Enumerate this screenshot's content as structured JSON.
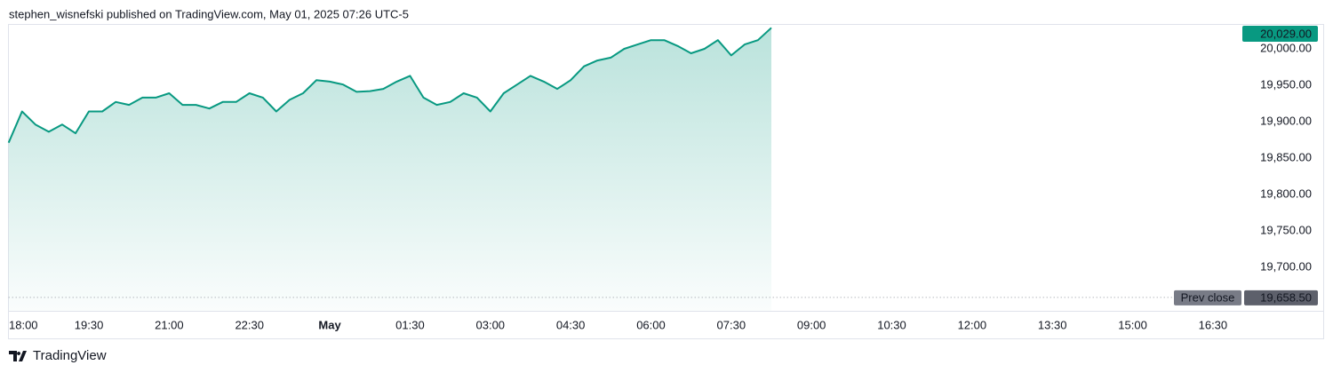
{
  "header": "stephen_wisnefski published on TradingView.com, May 01, 2025 07:26 UTC-5",
  "footer": "TradingView",
  "chart_data": {
    "type": "area",
    "color": "#089981",
    "x": [
      0,
      0.25,
      0.5,
      0.75,
      1,
      1.25,
      1.5,
      1.75,
      2,
      2.25,
      2.5,
      2.75,
      3,
      3.25,
      3.5,
      3.75,
      4,
      4.25,
      4.5,
      4.75,
      5,
      5.25,
      5.5,
      5.75,
      6,
      6.25,
      6.5,
      6.75,
      7,
      7.25,
      7.5,
      7.75,
      8,
      8.25,
      8.5,
      8.75,
      9,
      9.25,
      9.5,
      9.75,
      10,
      10.25,
      10.5,
      10.75,
      11,
      11.25,
      11.5,
      11.75,
      12,
      12.25,
      12.5,
      12.75,
      13,
      13.25,
      13.5,
      13.75,
      14,
      14.25
    ],
    "values": [
      19871,
      19914,
      19896,
      19886,
      19896,
      19884,
      19914,
      19914,
      19927,
      19923,
      19933,
      19933,
      19939,
      19923,
      19923,
      19918,
      19927,
      19927,
      19939,
      19933,
      19914,
      19930,
      19939,
      19957,
      19955,
      19951,
      19941,
      19942,
      19945,
      19955,
      19963,
      19933,
      19923,
      19927,
      19939,
      19933,
      19914,
      19939,
      19951,
      19963,
      19955,
      19945,
      19957,
      19976,
      19984,
      19988,
      20000,
      20006,
      20012,
      20012,
      20004,
      19994,
      20000,
      20012,
      19991,
      20006,
      20012,
      20029
    ],
    "last_value_label": "20,029.00",
    "prev_close": {
      "label": "Prev close",
      "value": 19658.5,
      "value_label": "19,658.50"
    },
    "xlim": [
      0,
      23
    ],
    "xticks": [
      {
        "value": 0,
        "label": "18:00"
      },
      {
        "value": 1.5,
        "label": "19:30"
      },
      {
        "value": 3,
        "label": "21:00"
      },
      {
        "value": 4.5,
        "label": "22:30"
      },
      {
        "value": 6,
        "label": "May"
      },
      {
        "value": 7.5,
        "label": "01:30"
      },
      {
        "value": 9,
        "label": "03:00"
      },
      {
        "value": 10.5,
        "label": "04:30"
      },
      {
        "value": 12,
        "label": "06:00"
      },
      {
        "value": 13.5,
        "label": "07:30"
      },
      {
        "value": 15,
        "label": "09:00"
      },
      {
        "value": 16.5,
        "label": "10:30"
      },
      {
        "value": 18,
        "label": "12:00"
      },
      {
        "value": 19.5,
        "label": "13:30"
      },
      {
        "value": 21,
        "label": "15:00"
      },
      {
        "value": 22.5,
        "label": "16:30"
      }
    ],
    "ylim": [
      19640,
      20033
    ],
    "yticks": [
      {
        "value": 19700,
        "label": "19,700.00"
      },
      {
        "value": 19750,
        "label": "19,750.00"
      },
      {
        "value": 19800,
        "label": "19,800.00"
      },
      {
        "value": 19850,
        "label": "19,850.00"
      },
      {
        "value": 19900,
        "label": "19,900.00"
      },
      {
        "value": 19950,
        "label": "19,950.00"
      },
      {
        "value": 20000,
        "label": "20,000.00"
      }
    ]
  }
}
